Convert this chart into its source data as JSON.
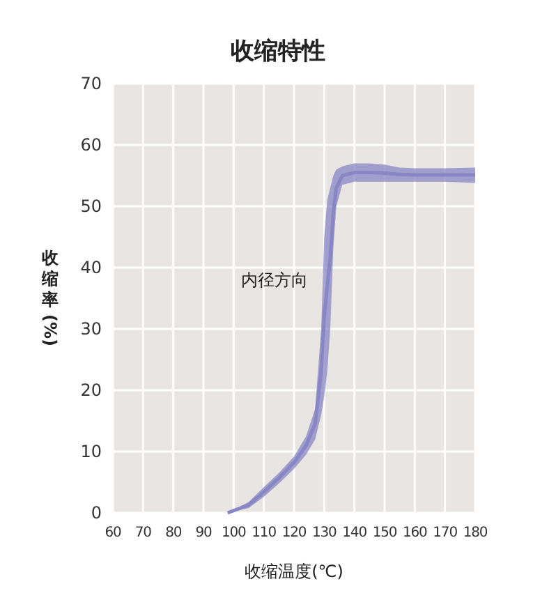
{
  "chart_data": {
    "type": "line",
    "title": "收缩特性",
    "xlabel": "收缩温度(℃)",
    "ylabel": "收缩率(%)",
    "x": [
      98,
      105,
      110,
      115,
      120,
      124,
      127,
      129,
      130,
      131,
      132,
      133,
      134,
      136,
      140,
      145,
      150,
      155,
      160,
      170,
      180
    ],
    "series": [
      {
        "name": "内径方向",
        "color": "#8886c4",
        "values": [
          0,
          1.3,
          3.4,
          5.7,
          8.2,
          11,
          14.5,
          23,
          32,
          37,
          41.5,
          49,
          53,
          55,
          55.5,
          55.5,
          55.4,
          55.2,
          55.1,
          55.1,
          55.1
        ],
        "lower": [
          0,
          0.8,
          2.6,
          4.8,
          7.2,
          9.5,
          12,
          16,
          19,
          23,
          30,
          43,
          50,
          53.5,
          54,
          54,
          54,
          54,
          54,
          54,
          53.8
        ],
        "upper": [
          0,
          1.8,
          4.2,
          6.5,
          9.2,
          12.5,
          17,
          30,
          45,
          51,
          53,
          55,
          56,
          56.5,
          57,
          57,
          56.8,
          56.3,
          56.2,
          56.2,
          56.3
        ]
      }
    ],
    "xlim": [
      60,
      180
    ],
    "ylim": [
      0,
      70
    ],
    "xticks": [
      60,
      70,
      80,
      90,
      100,
      110,
      120,
      130,
      140,
      150,
      160,
      170,
      180
    ],
    "yticks": [
      0,
      10,
      20,
      30,
      40,
      50,
      60,
      70
    ],
    "grid": true
  }
}
